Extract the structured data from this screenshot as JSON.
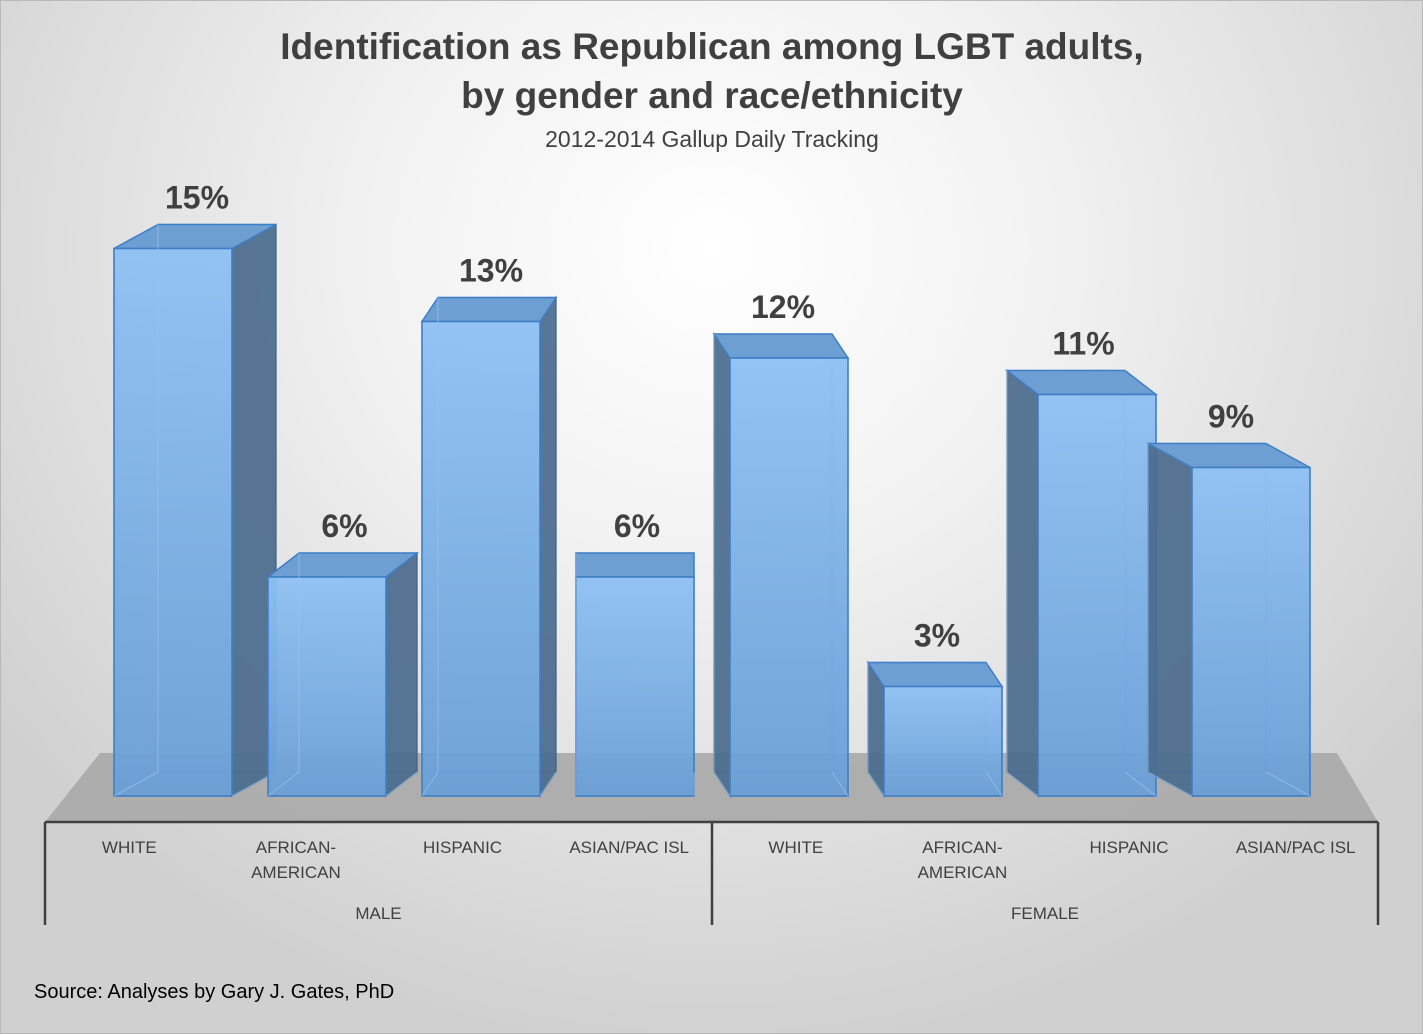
{
  "chart_data": {
    "type": "bar",
    "title_lines": [
      "Identification as Republican among LGBT adults,",
      "by gender and race/ethnicity"
    ],
    "subtitle": "2012-2014 Gallup Daily Tracking",
    "groups": [
      {
        "name": "MALE",
        "categories": [
          [
            "WHITE"
          ],
          [
            "AFRICAN-",
            "AMERICAN"
          ],
          [
            "HISPANIC"
          ],
          [
            "ASIAN/PAC ISL"
          ]
        ],
        "values": [
          15,
          6,
          13,
          6
        ],
        "labels": [
          "15%",
          "6%",
          "13%",
          "6%"
        ]
      },
      {
        "name": "FEMALE",
        "categories": [
          [
            "WHITE"
          ],
          [
            "AFRICAN-",
            "AMERICAN"
          ],
          [
            "HISPANIC"
          ],
          [
            "ASIAN/PAC ISL"
          ]
        ],
        "values": [
          12,
          3,
          11,
          9
        ],
        "labels": [
          "12%",
          "3%",
          "11%",
          "9%"
        ]
      }
    ],
    "ylim": [
      0,
      15
    ],
    "grid": false,
    "legend": "none",
    "bar_color": "#74a9e0",
    "bar_side_color": "#4b6b8e",
    "floor_color": "#a9a9a9"
  },
  "source": "Source: Analyses by Gary J. Gates, PhD"
}
